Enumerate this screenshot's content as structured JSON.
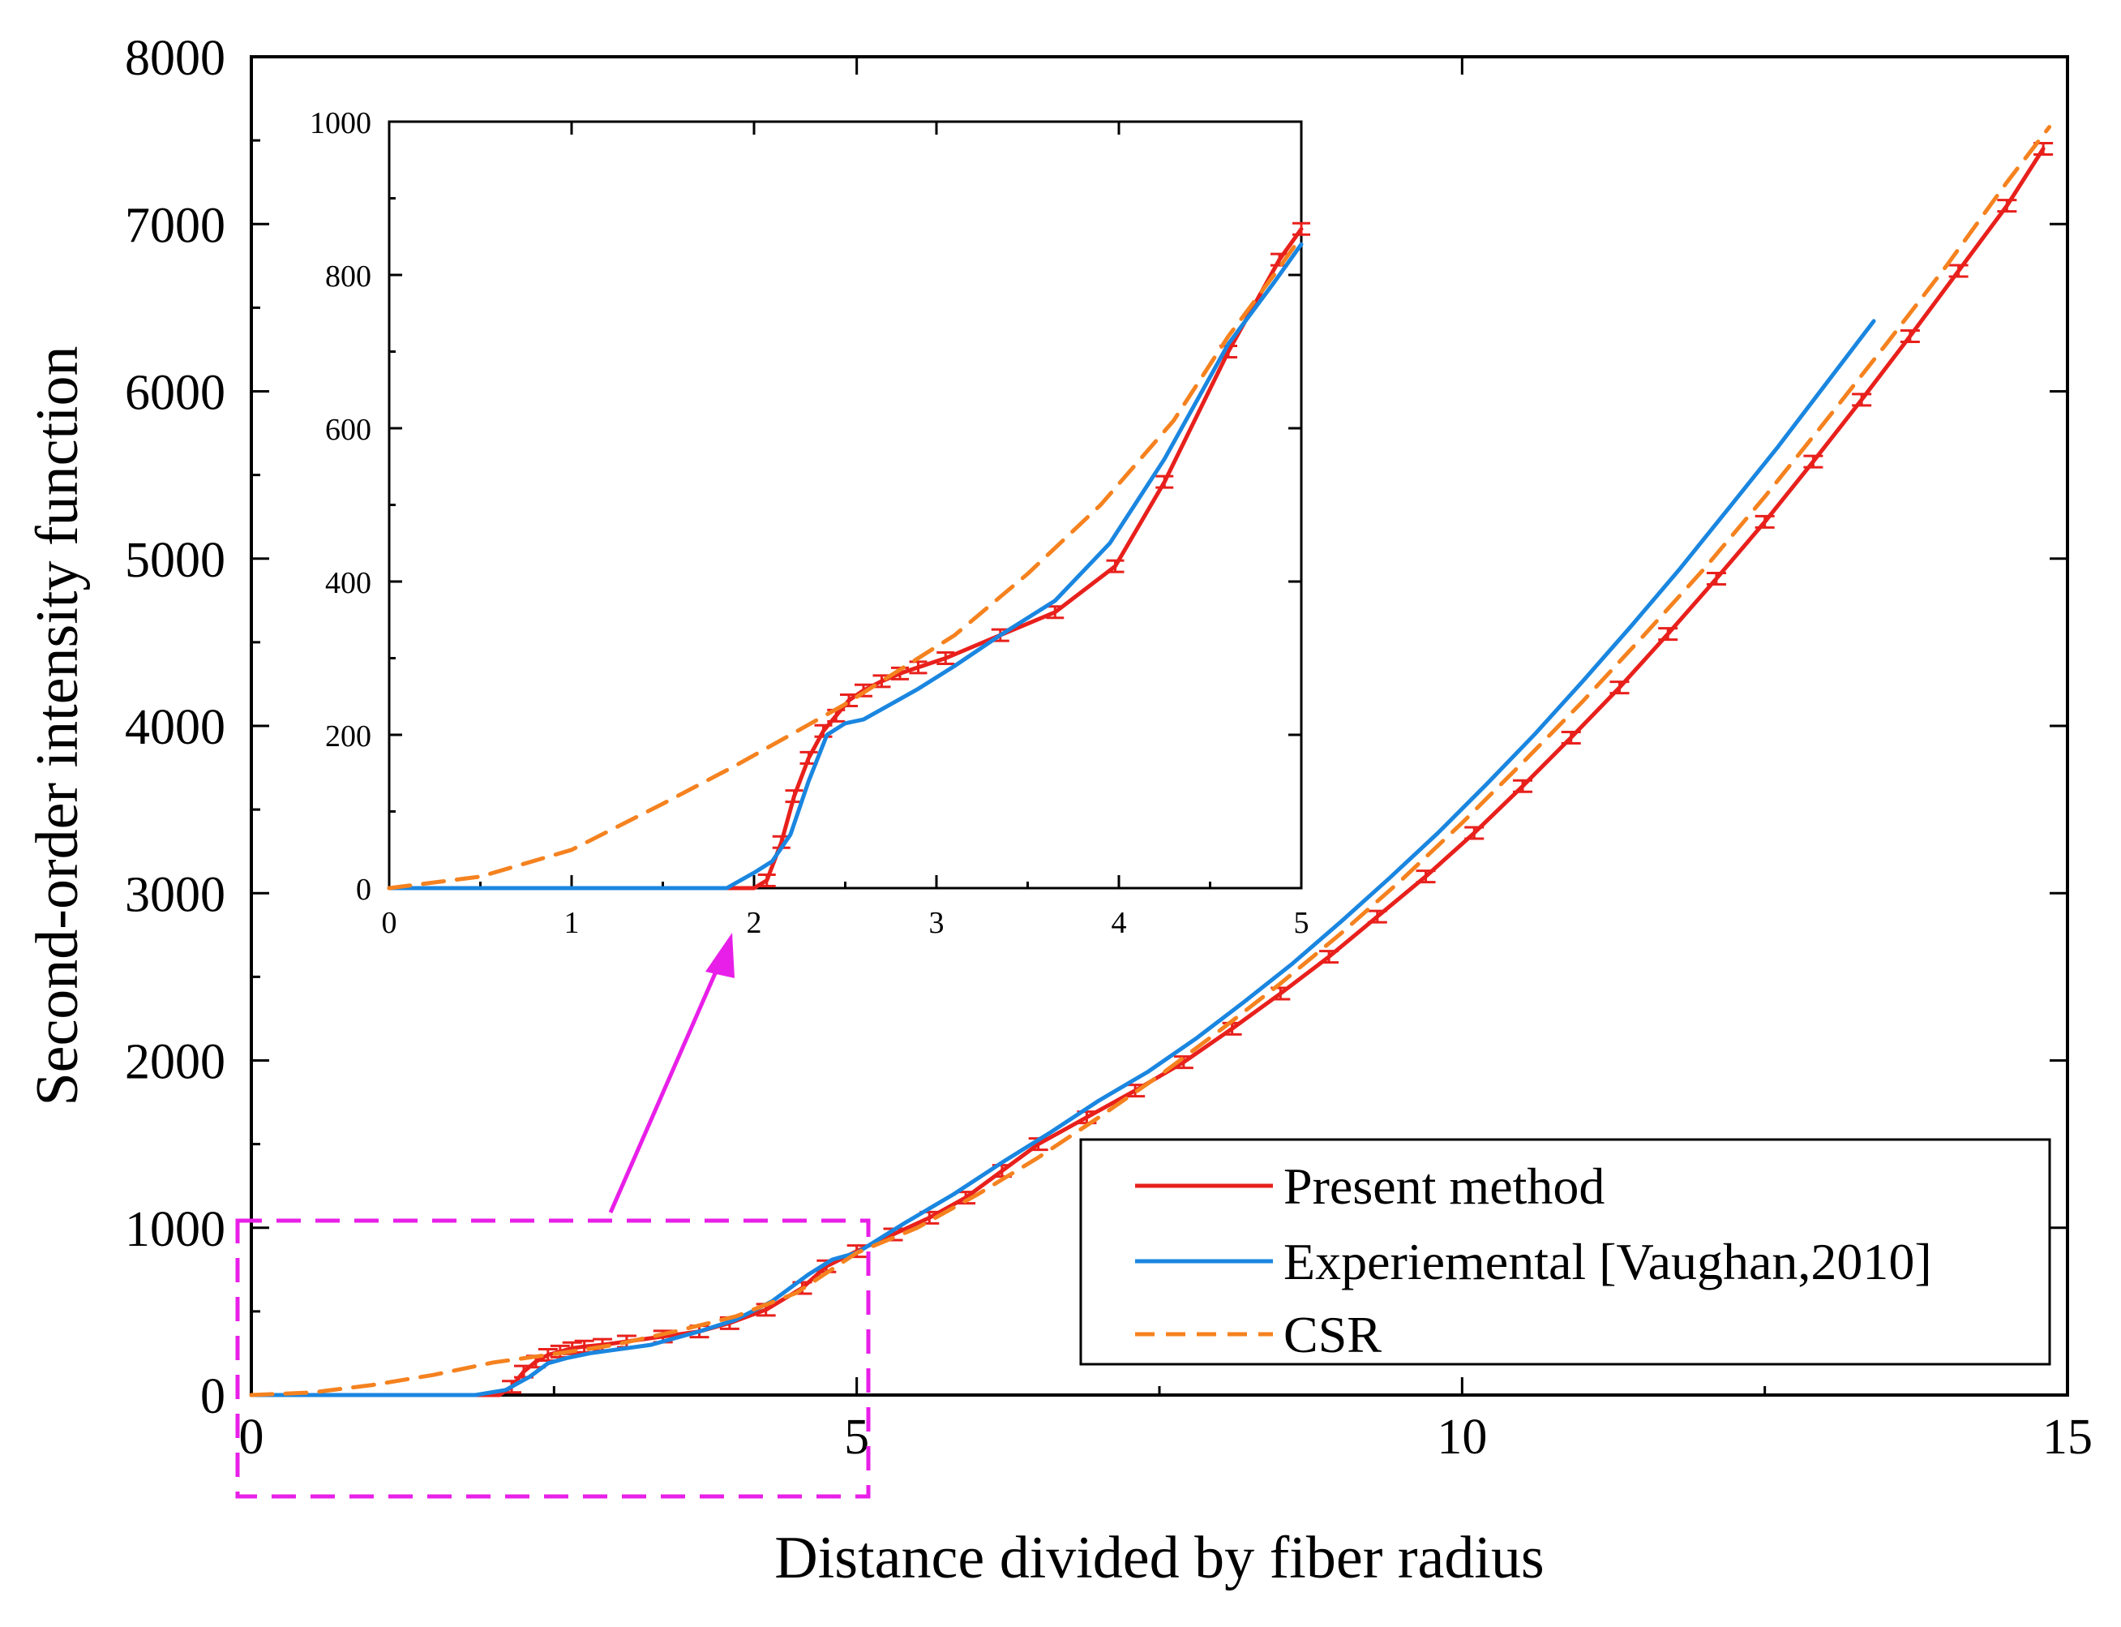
{
  "chart_data": {
    "type": "line",
    "title": "",
    "xlabel": "Distance divided by fiber radius",
    "ylabel": "Second-order intensity function",
    "xlim": [
      0,
      15
    ],
    "ylim": [
      0,
      8000
    ],
    "xticks": [
      0,
      5,
      10,
      15
    ],
    "xtick_labels": [
      "0",
      "5",
      "10",
      "15"
    ],
    "yticks": [
      0,
      1000,
      2000,
      3000,
      4000,
      5000,
      6000,
      7000,
      8000
    ],
    "ytick_labels": [
      "0",
      "1000",
      "2000",
      "3000",
      "4000",
      "5000",
      "6000",
      "7000",
      "8000"
    ],
    "legend_position": "lower-right",
    "series": [
      {
        "name": "Present method",
        "color": "#e8201c",
        "style": "solid",
        "error_bars": true,
        "x": [
          0,
          2.05,
          2.15,
          2.25,
          2.35,
          2.45,
          2.55,
          2.65,
          2.75,
          2.9,
          3.1,
          3.4,
          3.7,
          3.95,
          4.25,
          4.55,
          4.75,
          5.0,
          5.3,
          5.6,
          5.9,
          6.2,
          6.5,
          6.9,
          7.3,
          7.7,
          8.1,
          8.5,
          8.9,
          9.3,
          9.7,
          10.1,
          10.5,
          10.9,
          11.3,
          11.7,
          12.1,
          12.5,
          12.9,
          13.3,
          13.7,
          14.1,
          14.5,
          14.8
        ],
        "y": [
          0,
          0,
          50,
          140,
          200,
          240,
          260,
          280,
          290,
          300,
          320,
          350,
          380,
          430,
          510,
          640,
          770,
          860,
          960,
          1060,
          1180,
          1340,
          1500,
          1660,
          1820,
          1990,
          2190,
          2400,
          2620,
          2860,
          3100,
          3360,
          3640,
          3930,
          4230,
          4550,
          4880,
          5220,
          5580,
          5950,
          6330,
          6720,
          7110,
          7450
        ]
      },
      {
        "name": "Experiemental [Vaughan,2010]",
        "color": "#1a86e0",
        "style": "solid",
        "error_bars": false,
        "x": [
          0,
          1.85,
          2.1,
          2.3,
          2.45,
          2.6,
          2.8,
          3.0,
          3.3,
          3.7,
          4.0,
          4.3,
          4.6,
          4.8,
          5.0,
          5.4,
          5.8,
          6.2,
          6.6,
          7.0,
          7.4,
          7.8,
          8.2,
          8.6,
          9.0,
          9.4,
          9.8,
          10.2,
          10.6,
          11.0,
          11.4,
          11.8,
          12.2,
          12.6,
          13.0,
          13.4
        ],
        "y": [
          0,
          0,
          30,
          110,
          190,
          220,
          250,
          270,
          300,
          380,
          450,
          560,
          720,
          810,
          850,
          1030,
          1200,
          1390,
          1570,
          1760,
          1930,
          2130,
          2350,
          2580,
          2830,
          3090,
          3360,
          3650,
          3950,
          4270,
          4600,
          4940,
          5300,
          5660,
          6040,
          6420
        ]
      },
      {
        "name": "CSR",
        "color": "#f5821f",
        "style": "dashed",
        "error_bars": false,
        "x": [
          0,
          0.5,
          1.0,
          1.5,
          2.0,
          2.5,
          3.0,
          3.5,
          4.0,
          4.5,
          5.0,
          5.5,
          6.0,
          6.5,
          7.0,
          7.5,
          8.0,
          8.5,
          9.0,
          9.5,
          10.0,
          10.5,
          11.0,
          11.5,
          12.0,
          12.5,
          13.0,
          13.5,
          14.0,
          14.5,
          14.85
        ],
        "y": [
          0,
          15,
          60,
          120,
          195,
          245,
          300,
          380,
          470,
          610,
          850,
          1000,
          1200,
          1420,
          1660,
          1910,
          2180,
          2460,
          2760,
          3080,
          3420,
          3780,
          4150,
          4540,
          4940,
          5370,
          5820,
          6280,
          6750,
          7250,
          7580
        ]
      }
    ],
    "inset": {
      "xlim": [
        0,
        5
      ],
      "ylim": [
        0,
        1000
      ],
      "xticks": [
        0,
        1,
        2,
        3,
        4,
        5
      ],
      "xtick_labels": [
        "0",
        "1",
        "2",
        "3",
        "4",
        "5"
      ],
      "yticks": [
        0,
        200,
        400,
        600,
        800,
        1000
      ],
      "ytick_labels": [
        "0",
        "200",
        "400",
        "600",
        "800",
        "1000"
      ],
      "series": [
        {
          "name": "Present method",
          "x": [
            0,
            2.0,
            2.07,
            2.15,
            2.22,
            2.3,
            2.38,
            2.45,
            2.52,
            2.6,
            2.7,
            2.8,
            2.9,
            3.05,
            3.35,
            3.65,
            3.98,
            4.25,
            4.6,
            4.88,
            5.0
          ],
          "y": [
            0,
            0,
            10,
            60,
            120,
            170,
            205,
            225,
            245,
            258,
            270,
            280,
            288,
            300,
            330,
            360,
            420,
            530,
            700,
            820,
            860
          ]
        },
        {
          "name": "Experiemental [Vaughan,2010]",
          "x": [
            0,
            1.85,
            2.0,
            2.1,
            2.2,
            2.3,
            2.4,
            2.5,
            2.6,
            2.75,
            2.9,
            3.1,
            3.35,
            3.65,
            3.95,
            4.25,
            4.6,
            4.85,
            5.0
          ],
          "y": [
            0,
            0,
            20,
            35,
            70,
            140,
            200,
            215,
            220,
            240,
            260,
            290,
            330,
            375,
            450,
            560,
            710,
            790,
            840
          ]
        },
        {
          "name": "CSR",
          "x": [
            0,
            0.5,
            1.0,
            1.5,
            1.9,
            2.2,
            2.5,
            2.8,
            3.1,
            3.5,
            3.9,
            4.3,
            4.6,
            4.85,
            5.0
          ],
          "y": [
            0,
            15,
            50,
            110,
            160,
            200,
            240,
            285,
            330,
            410,
            500,
            610,
            720,
            800,
            850
          ]
        }
      ]
    }
  }
}
